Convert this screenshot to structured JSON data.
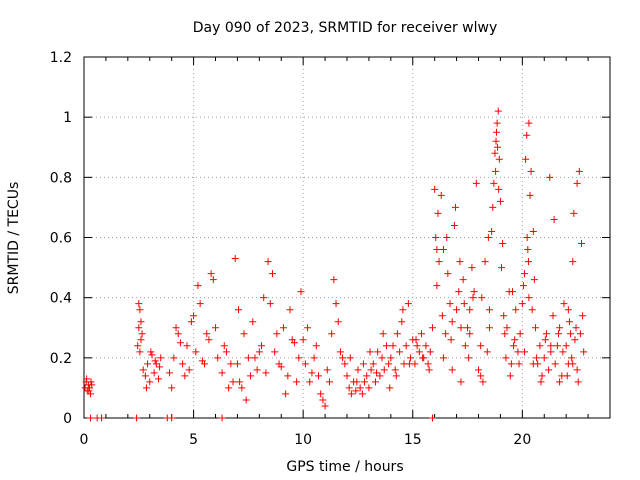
{
  "chart_data": {
    "type": "scatter",
    "title": "Day 090 of 2023, SRMTID for receiver wlwy",
    "xlabel": "GPS time / hours",
    "ylabel": "SRMTID / TECUs",
    "xlim": [
      0,
      24
    ],
    "ylim": [
      0,
      1.2
    ],
    "xticks": [
      0,
      5,
      10,
      15,
      20
    ],
    "xtick_labels": [
      "0",
      "5",
      "10",
      "15",
      "20"
    ],
    "yticks": [
      0,
      0.2,
      0.4,
      0.6,
      0.8,
      1,
      1.2
    ],
    "ytick_labels": [
      "0",
      "0.2",
      "0.4",
      "0.6",
      "0.8",
      "1",
      "1.2"
    ],
    "grid": true,
    "marker": "+",
    "series": [
      {
        "name": "SRMTID",
        "color": "#ff0000",
        "x": [
          0.05,
          0.1,
          0.15,
          0.2,
          0.25,
          0.3,
          0.35,
          0.12,
          0.22,
          0.32,
          0.3,
          0.6,
          0.8,
          2.4,
          3.8,
          4.0,
          6.3,
          15.9,
          2.45,
          2.5,
          2.55,
          2.6,
          2.65,
          2.7,
          2.8,
          2.9,
          3.0,
          3.1,
          3.2,
          3.3,
          3.4,
          3.5,
          2.5,
          2.55,
          2.6,
          2.85,
          3.05,
          3.25,
          3.45,
          3.9,
          4.1,
          4.3,
          4.5,
          4.7,
          4.9,
          5.1,
          5.3,
          5.5,
          5.7,
          5.9,
          6.1,
          6.3,
          6.5,
          6.7,
          6.9,
          4.2,
          4.6,
          5.0,
          5.2,
          5.6,
          5.8,
          6.4,
          6.8,
          4.0,
          4.4,
          4.8,
          5.4,
          6.0,
          6.6,
          7.0,
          7.1,
          7.3,
          7.5,
          7.7,
          7.9,
          8.1,
          8.3,
          8.5,
          8.7,
          8.9,
          9.1,
          9.3,
          9.5,
          9.7,
          9.9,
          7.05,
          7.4,
          7.8,
          8.2,
          8.4,
          8.8,
          9.0,
          9.4,
          9.6,
          9.8,
          7.2,
          7.6,
          8.0,
          8.6,
          9.2,
          10.0,
          10.1,
          10.3,
          10.5,
          10.7,
          10.8,
          10.9,
          11.0,
          11.1,
          11.3,
          11.5,
          11.7,
          11.9,
          10.2,
          10.4,
          10.6,
          11.2,
          11.4,
          11.6,
          11.8,
          12.0,
          12.1,
          12.2,
          12.3,
          12.4,
          12.5,
          12.6,
          12.7,
          12.8,
          12.9,
          13.0,
          13.1,
          13.2,
          13.3,
          13.4,
          13.5,
          13.6,
          13.7,
          13.8,
          13.9,
          12.15,
          12.45,
          12.75,
          13.05,
          13.35,
          13.65,
          13.95,
          14.0,
          14.1,
          14.2,
          14.3,
          14.4,
          14.5,
          14.6,
          14.7,
          14.8,
          14.9,
          15.0,
          15.1,
          15.2,
          15.3,
          15.4,
          15.5,
          15.6,
          15.7,
          15.8,
          15.9,
          14.25,
          14.55,
          14.85,
          15.15,
          15.45,
          15.75,
          16.0,
          16.05,
          16.1,
          16.2,
          16.3,
          16.4,
          16.5,
          16.6,
          16.7,
          16.8,
          16.9,
          17.0,
          17.1,
          17.2,
          17.3,
          17.4,
          17.5,
          17.6,
          17.7,
          17.8,
          17.9,
          16.15,
          16.35,
          16.55,
          16.75,
          16.95,
          17.15,
          17.35,
          17.55,
          17.75,
          16.1,
          16.4,
          16.8,
          17.2,
          17.6,
          18.0,
          18.1,
          18.2,
          18.3,
          18.4,
          18.5,
          18.6,
          18.7,
          18.75,
          18.8,
          18.85,
          18.9,
          18.95,
          19.0,
          19.1,
          19.2,
          19.3,
          19.4,
          19.5,
          19.6,
          19.7,
          19.8,
          19.9,
          18.15,
          18.45,
          18.65,
          18.78,
          18.82,
          18.87,
          18.92,
          19.05,
          19.25,
          19.45,
          19.65,
          19.85,
          18.1,
          18.5,
          19.15,
          19.55,
          20.0,
          20.1,
          20.15,
          20.2,
          20.25,
          20.3,
          20.35,
          20.4,
          20.5,
          20.6,
          20.7,
          20.8,
          20.9,
          21.0,
          21.1,
          21.2,
          21.3,
          21.4,
          21.5,
          21.6,
          21.7,
          21.8,
          21.9,
          20.05,
          20.22,
          20.28,
          20.45,
          20.55,
          20.65,
          20.85,
          21.05,
          21.25,
          21.45,
          21.65,
          21.85,
          20.1,
          20.3,
          20.5,
          21.3,
          21.7,
          22.0,
          22.1,
          22.2,
          22.3,
          22.4,
          22.5,
          22.6,
          22.7,
          22.8,
          22.05,
          22.15,
          22.25,
          22.35,
          22.45,
          22.55,
          22.65,
          22.75,
          22.1,
          22.3,
          22.5
        ],
        "y": [
          0.1,
          0.12,
          0.09,
          0.11,
          0.1,
          0.08,
          0.11,
          0.13,
          0.09,
          0.12,
          0,
          0,
          0,
          0,
          0,
          0,
          0,
          0,
          0.24,
          0.38,
          0.22,
          0.32,
          0.28,
          0.16,
          0.14,
          0.18,
          0.12,
          0.21,
          0.15,
          0.18,
          0.13,
          0.2,
          0.3,
          0.36,
          0.26,
          0.1,
          0.22,
          0.19,
          0.17,
          0.15,
          0.2,
          0.28,
          0.18,
          0.24,
          0.32,
          0.22,
          0.38,
          0.18,
          0.26,
          0.46,
          0.2,
          0.15,
          0.22,
          0.18,
          0.53,
          0.3,
          0.14,
          0.34,
          0.44,
          0.28,
          0.48,
          0.24,
          0.12,
          0.1,
          0.25,
          0.16,
          0.19,
          0.3,
          0.1,
          0.18,
          0.12,
          0.28,
          0.2,
          0.32,
          0.16,
          0.24,
          0.15,
          0.38,
          0.22,
          0.18,
          0.3,
          0.14,
          0.26,
          0.12,
          0.42,
          0.36,
          0.06,
          0.2,
          0.4,
          0.52,
          0.28,
          0.17,
          0.36,
          0.25,
          0.2,
          0.1,
          0.14,
          0.22,
          0.48,
          0.08,
          0.26,
          0.18,
          0.12,
          0.2,
          0.14,
          0.08,
          0.06,
          0.04,
          0.16,
          0.28,
          0.38,
          0.22,
          0.18,
          0.3,
          0.15,
          0.24,
          0.12,
          0.46,
          0.32,
          0.2,
          0.14,
          0.1,
          0.08,
          0.12,
          0.09,
          0.16,
          0.1,
          0.08,
          0.12,
          0.14,
          0.1,
          0.16,
          0.18,
          0.12,
          0.22,
          0.14,
          0.2,
          0.16,
          0.24,
          0.18,
          0.2,
          0.12,
          0.18,
          0.22,
          0.15,
          0.28,
          0.1,
          0.2,
          0.24,
          0.16,
          0.28,
          0.22,
          0.32,
          0.18,
          0.24,
          0.38,
          0.2,
          0.26,
          0.18,
          0.24,
          0.22,
          0.28,
          0.2,
          0.24,
          0.18,
          0.22,
          0.3,
          0.14,
          0.36,
          0.18,
          0.26,
          0.2,
          0.16,
          0.76,
          0.6,
          0.44,
          0.52,
          0.74,
          0.56,
          0.28,
          0.48,
          0.38,
          0.32,
          0.64,
          0.36,
          0.42,
          0.3,
          0.46,
          0.24,
          0.3,
          0.28,
          0.5,
          0.42,
          0.78,
          0.68,
          0.34,
          0.6,
          0.26,
          0.7,
          0.52,
          0.38,
          0.2,
          0.4,
          0.56,
          0.2,
          0.16,
          0.12,
          0.36,
          0.16,
          0.24,
          0.12,
          0.52,
          0.22,
          0.36,
          0.62,
          0.78,
          0.88,
          0.92,
          0.98,
          1.02,
          0.86,
          0.72,
          0.58,
          0.28,
          0.3,
          0.42,
          0.18,
          0.24,
          0.36,
          0.22,
          0.28,
          0.4,
          0.6,
          0.7,
          0.82,
          0.95,
          0.9,
          0.76,
          0.5,
          0.2,
          0.14,
          0.26,
          0.18,
          0.14,
          0.3,
          0.34,
          0.42,
          0.38,
          0.48,
          0.86,
          0.94,
          0.56,
          0.98,
          0.74,
          0.82,
          0.62,
          0.3,
          0.18,
          0.24,
          0.14,
          0.2,
          0.28,
          0.16,
          0.22,
          0.34,
          0.18,
          0.24,
          0.3,
          0.14,
          0.38,
          0.44,
          0.6,
          0.52,
          0.36,
          0.46,
          0.2,
          0.12,
          0.26,
          0.8,
          0.66,
          0.28,
          0.22,
          0.22,
          0.4,
          0.18,
          0.24,
          0.12,
          0.24,
          0.36,
          0.28,
          0.18,
          0.26,
          0.78,
          0.82,
          0.58,
          0.22,
          0.14,
          0.32,
          0.2,
          0.68,
          0.3,
          0.12,
          0.28,
          0.34,
          0.18,
          0.52,
          0.16
        ]
      }
    ]
  }
}
